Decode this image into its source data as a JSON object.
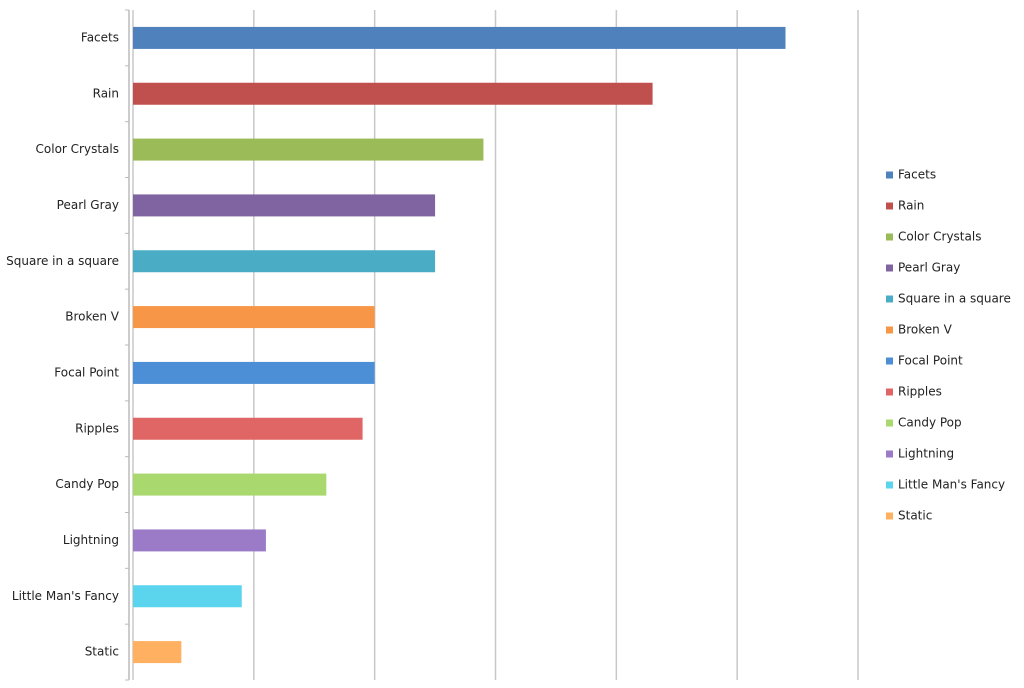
{
  "chart_data": {
    "type": "bar",
    "orientation": "horizontal",
    "categories": [
      "Facets",
      "Rain",
      "Color Crystals",
      "Pearl Gray",
      "Square in a square",
      "Broken V",
      "Focal Point",
      "Ripples",
      "Candy Pop",
      "Lightning",
      "Little Man's Fancy",
      "Static"
    ],
    "values": [
      54,
      43,
      29,
      25,
      25,
      20,
      20,
      19,
      16,
      11,
      9,
      4
    ],
    "colors": [
      "#4f81bd",
      "#c0504d",
      "#9bbb59",
      "#8064a2",
      "#4bacc6",
      "#f79646",
      "#4d8fd6",
      "#e06666",
      "#a8d86e",
      "#9b7bc8",
      "#5bd4ee",
      "#ffb060"
    ],
    "xlim": [
      0,
      60
    ],
    "xticks": [
      0,
      10,
      20,
      30,
      40,
      50,
      60
    ],
    "grid": true,
    "tick_labels": false,
    "legend": "right"
  }
}
